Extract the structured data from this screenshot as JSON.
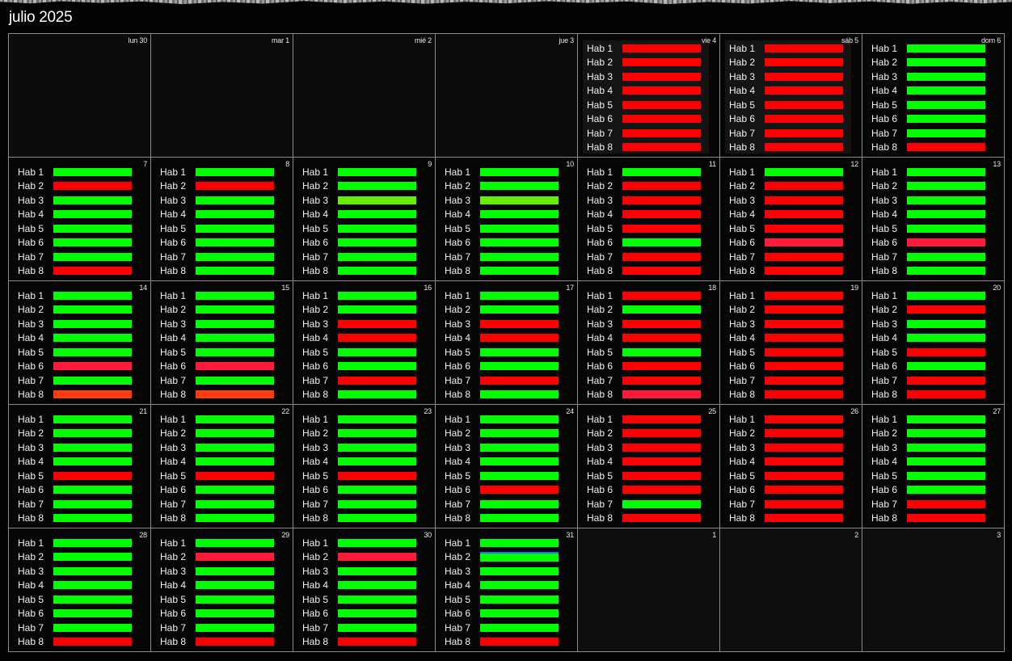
{
  "title": "julio 2025",
  "colors": {
    "available": "#00ff00",
    "occupied": "#ff0000",
    "occupied_alt": "#ff1a3a",
    "partial": "#66ee00",
    "partial_alt": "#ff3a10"
  },
  "room_labels": [
    "Hab 1",
    "Hab 2",
    "Hab 3",
    "Hab 4",
    "Hab 5",
    "Hab 6",
    "Hab 7",
    "Hab 8"
  ],
  "weeks": [
    [
      {
        "day": "lun 30",
        "rooms": null
      },
      {
        "day": "mar 1",
        "rooms": null
      },
      {
        "day": "mié 2",
        "rooms": null
      },
      {
        "day": "jue 3",
        "rooms": null
      },
      {
        "day": "vie 4",
        "rooms": [
          "r",
          "r",
          "r",
          "r",
          "r",
          "r",
          "r",
          "r"
        ],
        "panel": true
      },
      {
        "day": "sáb 5",
        "rooms": [
          "r",
          "r",
          "r",
          "r",
          "r",
          "r",
          "r",
          "r"
        ],
        "panel": true
      },
      {
        "day": "dom 6",
        "rooms": [
          "g",
          "g",
          "g",
          "g",
          "g",
          "g",
          "g",
          "r"
        ]
      }
    ],
    [
      {
        "day": "7",
        "rooms": [
          "g",
          "r",
          "g",
          "g",
          "g",
          "g",
          "g",
          "r"
        ]
      },
      {
        "day": "8",
        "rooms": [
          "g",
          "r",
          "g",
          "g",
          "g",
          "g",
          "g",
          "g"
        ]
      },
      {
        "day": "9",
        "rooms": [
          "g",
          "g",
          "p",
          "g",
          "g",
          "g",
          "g",
          "g"
        ]
      },
      {
        "day": "10",
        "rooms": [
          "g",
          "g",
          "p",
          "g",
          "g",
          "g",
          "g",
          "g"
        ]
      },
      {
        "day": "11",
        "rooms": [
          "g",
          "r",
          "r",
          "r",
          "r",
          "g",
          "r",
          "r"
        ]
      },
      {
        "day": "12",
        "rooms": [
          "g",
          "r",
          "r",
          "r",
          "r",
          "a",
          "r",
          "r"
        ]
      },
      {
        "day": "13",
        "rooms": [
          "g",
          "g",
          "g",
          "g",
          "g",
          "a",
          "g",
          "g"
        ]
      }
    ],
    [
      {
        "day": "14",
        "rooms": [
          "g",
          "g",
          "g",
          "g",
          "g",
          "a",
          "g",
          "q"
        ]
      },
      {
        "day": "15",
        "rooms": [
          "g",
          "g",
          "g",
          "g",
          "g",
          "a",
          "g",
          "q"
        ]
      },
      {
        "day": "16",
        "rooms": [
          "g",
          "g",
          "r",
          "r",
          "g",
          "g",
          "r",
          "g"
        ]
      },
      {
        "day": "17",
        "rooms": [
          "g",
          "g",
          "r",
          "r",
          "g",
          "g",
          "r",
          "g"
        ]
      },
      {
        "day": "18",
        "rooms": [
          "r",
          "g",
          "r",
          "r",
          "g",
          "r",
          "r",
          "a"
        ]
      },
      {
        "day": "19",
        "rooms": [
          "r",
          "r",
          "r",
          "r",
          "r",
          "r",
          "r",
          "r"
        ]
      },
      {
        "day": "20",
        "rooms": [
          "g",
          "r",
          "g",
          "g",
          "r",
          "g",
          "r",
          "r"
        ]
      }
    ],
    [
      {
        "day": "21",
        "rooms": [
          "g",
          "g",
          "g",
          "g",
          "r",
          "g",
          "g",
          "g"
        ]
      },
      {
        "day": "22",
        "rooms": [
          "g",
          "g",
          "g",
          "g",
          "r",
          "g",
          "g",
          "g"
        ]
      },
      {
        "day": "23",
        "rooms": [
          "g",
          "g",
          "g",
          "g",
          "r",
          "g",
          "g",
          "g"
        ]
      },
      {
        "day": "24",
        "rooms": [
          "g",
          "g",
          "g",
          "g",
          "g",
          "r",
          "g",
          "g"
        ]
      },
      {
        "day": "25",
        "rooms": [
          "r",
          "r",
          "r",
          "r",
          "r",
          "r",
          "g",
          "r"
        ]
      },
      {
        "day": "26",
        "rooms": [
          "r",
          "r",
          "r",
          "r",
          "r",
          "r",
          "r",
          "r"
        ]
      },
      {
        "day": "27",
        "rooms": [
          "g",
          "g",
          "g",
          "g",
          "g",
          "g",
          "r",
          "r"
        ]
      }
    ],
    [
      {
        "day": "28",
        "rooms": [
          "g",
          "g",
          "g",
          "g",
          "g",
          "g",
          "g",
          "r"
        ]
      },
      {
        "day": "29",
        "rooms": [
          "g",
          "a",
          "g",
          "g",
          "g",
          "g",
          "g",
          "r"
        ]
      },
      {
        "day": "30",
        "rooms": [
          "g",
          "a",
          "g",
          "g",
          "g",
          "g",
          "g",
          "r"
        ]
      },
      {
        "day": "31",
        "rooms": [
          "g",
          "b",
          "g",
          "g",
          "g",
          "g",
          "g",
          "r"
        ]
      },
      {
        "day": "1",
        "rooms": null,
        "next": true
      },
      {
        "day": "2",
        "rooms": null,
        "next": true
      },
      {
        "day": "3",
        "rooms": null,
        "next": true
      }
    ]
  ]
}
